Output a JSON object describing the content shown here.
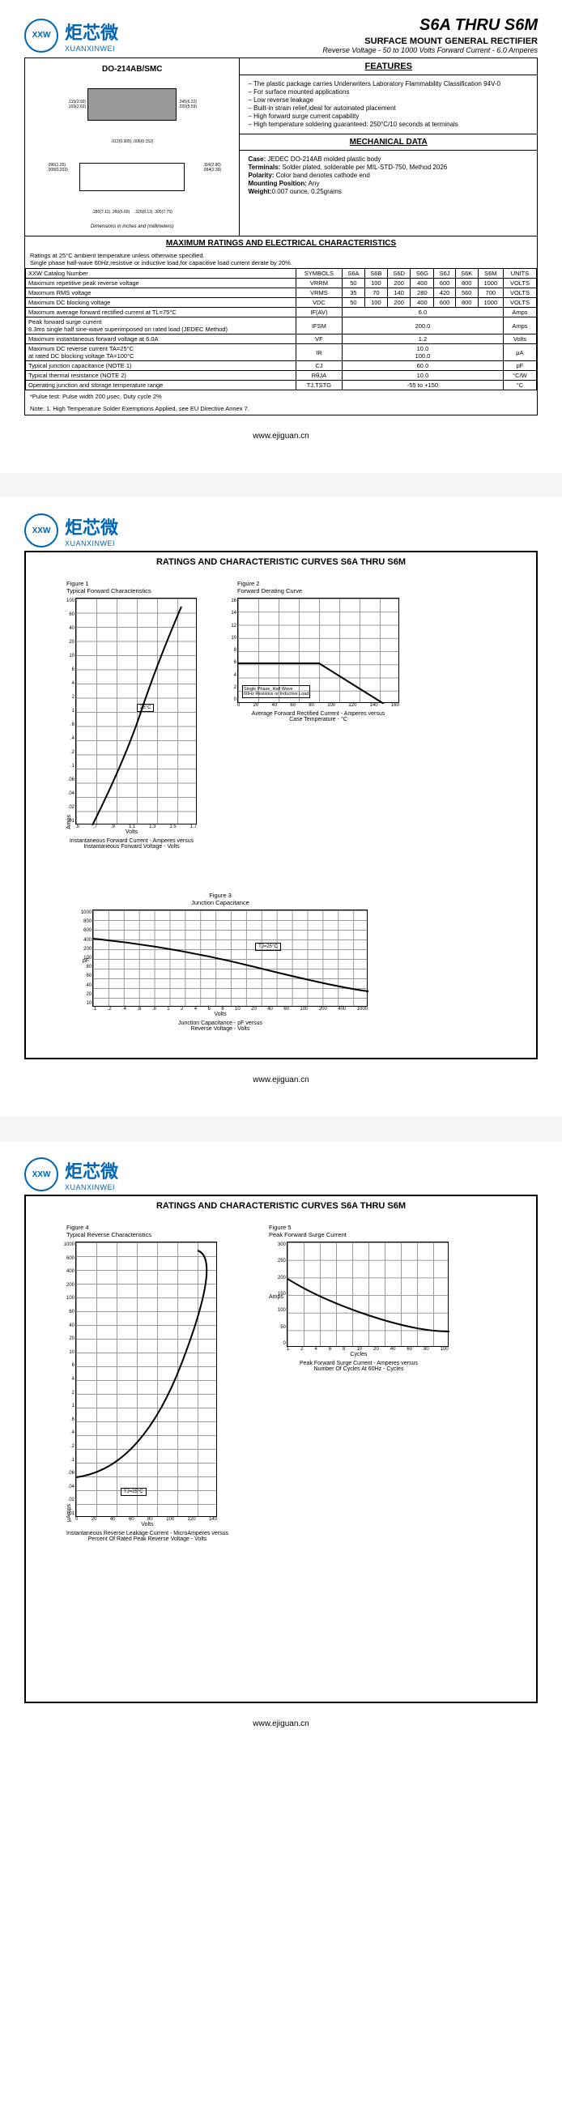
{
  "logo": {
    "cn": "炬芯微",
    "en": "XUANXINWEI",
    "icon": "XXW"
  },
  "header": {
    "title": "S6A THRU S6M",
    "subtitle": "SURFACE MOUNT GENERAL RECTIFIER",
    "info": "Reverse Voltage - 50 to 1000 Volts    Forward Current - 6.0 Amperes"
  },
  "package": {
    "title": "DO-214AB/SMC",
    "dim_note": "Dimensions in inches and (millimeters)"
  },
  "features": {
    "title": "FEATURES",
    "items": [
      "The plastic package carries Underwriters Laboratory Flammability Classification 94V-0",
      "For surface mounted applications",
      "Low reverse leakage",
      "Built-in strain relief,ideal for automated placement",
      "High forward surge current capability",
      "High temperature soldering guaranteed: 250°C/10 seconds at terminals"
    ]
  },
  "mechanical": {
    "title": "MECHANICAL DATA",
    "case": "JEDEC DO-214AB molded plastic body",
    "terminals": "Solder plated, solderable per MIL-STD-750, Method 2026",
    "polarity": "Color band denotes cathode end",
    "mounting": "Any",
    "weight": "0.007 ounce, 0.25grams"
  },
  "ratings": {
    "title": "MAXIMUM RATINGS AND ELECTRICAL CHARACTERISTICS",
    "intro": "Ratings at 25°C ambient temperature unless otherwise specified.\nSingle phase half-wave 60Hz,resistive or inductive load,for capacitive load current derate by 20%.",
    "header_row": [
      "XXW Catalog  Number",
      "SYMBOLS",
      "S6A",
      "S6B",
      "S6D",
      "S6G",
      "S6J",
      "S6K",
      "S6M",
      "UNITS"
    ],
    "rows": [
      {
        "l": "Maximum repetitive peak reverse voltage",
        "s": "VRRM",
        "v": [
          "50",
          "100",
          "200",
          "400",
          "600",
          "800",
          "1000"
        ],
        "u": "VOLTS"
      },
      {
        "l": "Maximum RMS voltage",
        "s": "VRMS",
        "v": [
          "35",
          "70",
          "140",
          "280",
          "420",
          "560",
          "700"
        ],
        "u": "VOLTS"
      },
      {
        "l": "Maximum DC blocking voltage",
        "s": "VDC",
        "v": [
          "50",
          "100",
          "200",
          "400",
          "600",
          "800",
          "1000"
        ],
        "u": "VOLTS"
      },
      {
        "l": "Maximum average forward rectified current at TL=75°C",
        "s": "IF(AV)",
        "span": "6.0",
        "u": "Amps"
      },
      {
        "l": "Peak forward surge current\n8.3ms single half sine-wave superimposed on rated load (JEDEC Method)",
        "s": "IFSM",
        "span": "200.0",
        "u": "Amps"
      },
      {
        "l": "Maximum instantaneous forward voltage at 6.0A",
        "s": "VF",
        "span": "1.2",
        "u": "Volts"
      },
      {
        "l": "Maximum DC reverse current      TA=25°C\nat rated DC blocking voltage      TA=100°C",
        "s": "IR",
        "span": "10.0\n100.0",
        "u": "μA"
      },
      {
        "l": "Typical junction capacitance (NOTE 1)",
        "s": "CJ",
        "span": "60.0",
        "u": "pF"
      },
      {
        "l": "Typical thermal resistance (NOTE 2)",
        "s": "RθJA",
        "span": "10.0",
        "u": "°C/W"
      },
      {
        "l": "Operating junction and storage temperature range",
        "s": "TJ,TSTG",
        "span": "-55 to +150",
        "u": "°C"
      }
    ],
    "pulse_note": "*Pulse test: Pulse width 200 μsec, Duty cycle 2%",
    "note1": "Note:   1.  High Temperature Solder Exemptions Applied, see EU Directive Annex 7."
  },
  "footer": {
    "url": "www.ejiguan.cn"
  },
  "page2": {
    "title": "RATINGS AND CHARACTERISTIC CURVES S6A THRU S6M",
    "fig1": {
      "t": "Figure 1\nTypical Forward Characteristics",
      "xlabel": "Volts",
      "ylabel": "Amps",
      "caption": "Instantaneous Forward Current - Amperes versus\nInstantaneous Forward Voltage - Volts",
      "yticks": [
        "100",
        "60",
        "40",
        "20",
        "10",
        "6",
        "4",
        "2",
        "1",
        ".6",
        ".4",
        ".2",
        ".1",
        ".06",
        ".04",
        ".02",
        ".01"
      ],
      "xticks": [
        ".5",
        ".7",
        ".9",
        "1.1",
        "1.3",
        "1.5",
        "1.7"
      ],
      "anno": "25°C"
    },
    "fig2": {
      "t": "Figure 2\nForward Derating Curve",
      "xlabel": "",
      "ylabel": "",
      "caption": "Average Forward Rectified Current  -  Amperes versus\nCase Temperature  -  °C",
      "yticks": [
        "16",
        "14",
        "12",
        "10",
        "8",
        "6",
        "4",
        "2",
        "0"
      ],
      "xticks": [
        "0",
        "20",
        "40",
        "60",
        "80",
        "100",
        "120",
        "140",
        "160"
      ],
      "anno": "Single Phase, Half Wave\n60Hz Resistive or Inductive Load"
    },
    "fig3": {
      "t": "Figure 3\nJunction Capacitance",
      "xlabel": "Volts",
      "ylabel": "pF",
      "caption": "Junction Capacitance - pF versus\nReverse Voltage - Volts",
      "yticks": [
        "1000",
        "800",
        "600",
        "400",
        "200",
        "100",
        "80",
        "60",
        "40",
        "20",
        "10"
      ],
      "xticks": [
        ".1",
        ".2",
        ".4",
        ".6",
        ".8",
        "1",
        "2",
        "4",
        "6",
        "8",
        "10",
        "20",
        "40",
        "60",
        "100",
        "200",
        "400",
        "1000"
      ],
      "anno": "TJ=25°C"
    }
  },
  "page3": {
    "title": "RATINGS AND CHARACTERISTIC CURVES S6A THRU S6M",
    "fig4": {
      "t": "Figure 4\nTypical Reverse Characteristics",
      "xlabel": "Volts",
      "ylabel": "μAmps",
      "caption": "Instantaneous Reverse Leakage Current - MicroAmperes versus\nPercent Of Rated Peak Reverse Voltage - Volts",
      "yticks": [
        "1000",
        "600",
        "400",
        "200",
        "100",
        "60",
        "40",
        "20",
        "10",
        "6",
        "4",
        "2",
        "1",
        ".6",
        ".4",
        ".2",
        ".1",
        ".06",
        ".04",
        ".02",
        ".01"
      ],
      "xticks": [
        "0",
        "20",
        "40",
        "60",
        "80",
        "100",
        "120",
        "140"
      ],
      "anno": "TJ=25°C"
    },
    "fig5": {
      "t": "Figure 5\nPeak Forward Surge Current",
      "xlabel": "Cycles",
      "ylabel": "Amps",
      "caption": "Peak Forward Surge Current - Amperes versus\nNumber Of Cycles At 60Hz - Cycles",
      "yticks": [
        "300",
        "250",
        "200",
        "150",
        "100",
        "50",
        "0"
      ],
      "xticks": [
        "1",
        "2",
        "4",
        "6",
        "8",
        "10",
        "20",
        "40",
        "60",
        "80",
        "100"
      ]
    }
  }
}
